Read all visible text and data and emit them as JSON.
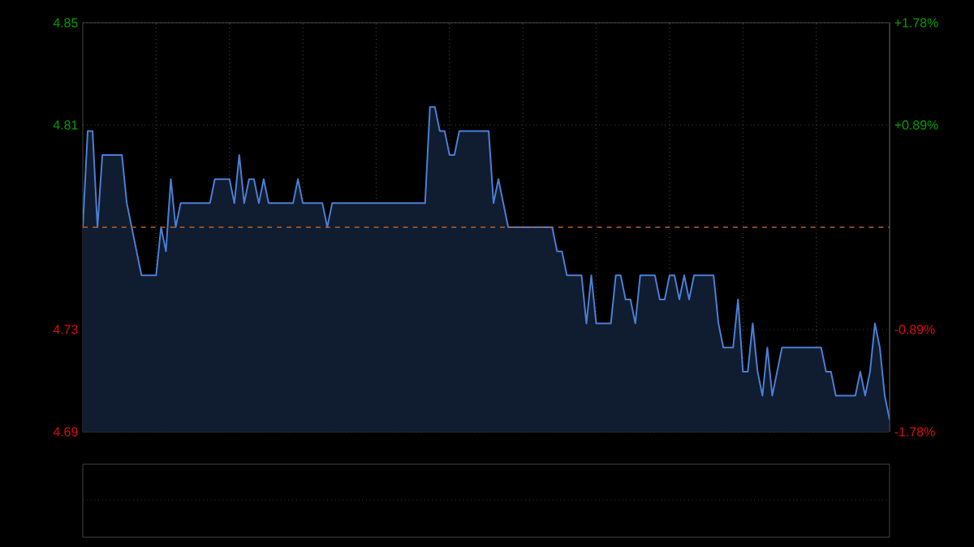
{
  "chart_data": {
    "type": "area",
    "categories": [
      null,
      null,
      null,
      null,
      null,
      null,
      null,
      null,
      null,
      null,
      null,
      null,
      null,
      null,
      null,
      null,
      null,
      null,
      null,
      null,
      null,
      null,
      null,
      null,
      null,
      null,
      null,
      null,
      null,
      null,
      null,
      null,
      null,
      null,
      null,
      null,
      null,
      null,
      null,
      null,
      null,
      null,
      null,
      null,
      null,
      null,
      null,
      null,
      null,
      null,
      null,
      null,
      null,
      null,
      null,
      null,
      null,
      null,
      null,
      null,
      null,
      null,
      null,
      null,
      null,
      null,
      null,
      null,
      null,
      null,
      null,
      null,
      null,
      null,
      null,
      null,
      null,
      null,
      null,
      null,
      null,
      null,
      null,
      null,
      null,
      null,
      null,
      null,
      null,
      null,
      null,
      null,
      null,
      null,
      null,
      null,
      null,
      null,
      null,
      null,
      null,
      null,
      null,
      null,
      null,
      null,
      null,
      null,
      null,
      null,
      null,
      null,
      null,
      null,
      null,
      null,
      null,
      null,
      null,
      null,
      null,
      null,
      null,
      null,
      null,
      null,
      null,
      null,
      null,
      null,
      null,
      null,
      null,
      null,
      null,
      null,
      null,
      null,
      null,
      null,
      null,
      null,
      null,
      null,
      null,
      null,
      null,
      null,
      null,
      null,
      null,
      null,
      null,
      null,
      null,
      null,
      null,
      null,
      null,
      null,
      null,
      null,
      null,
      null,
      null,
      null
    ],
    "series": [
      {
        "color": "#4a7fd4",
        "values": [
          4.77,
          4.81,
          4.81,
          4.77,
          4.8,
          4.8,
          4.8,
          4.8,
          4.8,
          4.78,
          4.77,
          4.76,
          4.75,
          4.75,
          4.75,
          4.75,
          4.77,
          4.76,
          4.79,
          4.77,
          4.78,
          4.78,
          4.78,
          4.78,
          4.78,
          4.78,
          4.78,
          4.79,
          4.79,
          4.79,
          4.79,
          4.78,
          4.8,
          4.78,
          4.79,
          4.79,
          4.78,
          4.79,
          4.78,
          4.78,
          4.78,
          4.78,
          4.78,
          4.78,
          4.79,
          4.78,
          4.78,
          4.78,
          4.78,
          4.78,
          4.77,
          4.78,
          4.78,
          4.78,
          4.78,
          4.78,
          4.78,
          4.78,
          4.78,
          4.78,
          4.78,
          4.78,
          4.78,
          4.78,
          4.78,
          4.78,
          4.78,
          4.78,
          4.78,
          4.78,
          4.78,
          4.82,
          4.82,
          4.81,
          4.81,
          4.8,
          4.8,
          4.81,
          4.81,
          4.81,
          4.81,
          4.81,
          4.81,
          4.81,
          4.78,
          4.79,
          4.78,
          4.77,
          4.77,
          4.77,
          4.77,
          4.77,
          4.77,
          4.77,
          4.77,
          4.77,
          4.77,
          4.76,
          4.76,
          4.75,
          4.75,
          4.75,
          4.75,
          4.73,
          4.75,
          4.73,
          4.73,
          4.73,
          4.73,
          4.75,
          4.75,
          4.74,
          4.74,
          4.73,
          4.75,
          4.75,
          4.75,
          4.75,
          4.74,
          4.74,
          4.75,
          4.75,
          4.74,
          4.75,
          4.74,
          4.75,
          4.75,
          4.75,
          4.75,
          4.75,
          4.73,
          4.72,
          4.72,
          4.72,
          4.74,
          4.71,
          4.71,
          4.73,
          4.71,
          4.7,
          4.72,
          4.7,
          4.71,
          4.72,
          4.72,
          4.72,
          4.72,
          4.72,
          4.72,
          4.72,
          4.72,
          4.72,
          4.71,
          4.71,
          4.7,
          4.7,
          4.7,
          4.7,
          4.7,
          4.71,
          4.7,
          4.71,
          4.73,
          4.72,
          4.7,
          4.69
        ]
      }
    ],
    "ylim": [
      4.685,
      4.855
    ],
    "yticks": [
      {
        "value": 4.855,
        "label": "4.85"
      },
      {
        "value": 4.8125,
        "label": "4.81"
      },
      {
        "value": 4.7275,
        "label": "4.73"
      },
      {
        "value": 4.685,
        "label": "4.69"
      }
    ],
    "y2lim": [
      -1.78,
      1.78
    ],
    "y2ticks": [
      {
        "value": 1.78,
        "label": "+1.78%"
      },
      {
        "value": 0.89,
        "label": "+0.89%"
      },
      {
        "value": -0.89,
        "label": "-0.89%"
      },
      {
        "value": -1.78,
        "label": "-1.78%"
      }
    ],
    "ref_lines": [
      {
        "axis": "y",
        "value": 4.77,
        "color": "#b5622a",
        "line_style": "dashed"
      }
    ],
    "grid": true,
    "tick_labels": "y",
    "marker": "none",
    "line_style": "solid"
  }
}
